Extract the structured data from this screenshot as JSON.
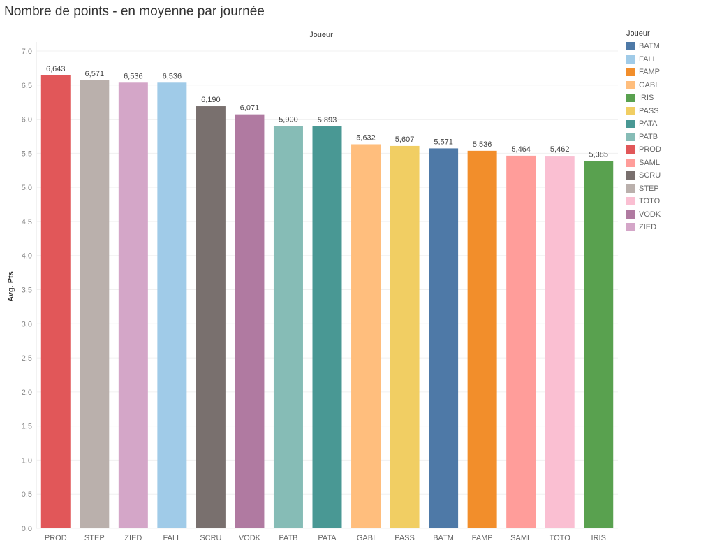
{
  "title": "Nombre de points - en moyenne par journée",
  "chart_data": {
    "type": "bar",
    "title": "Nombre de points - en moyenne par journée",
    "column_header": "Joueur",
    "xlabel": "",
    "ylabel": "Avg. Pts",
    "ylim": [
      0,
      7
    ],
    "yticks": [
      "0,0",
      "0,5",
      "1,0",
      "1,5",
      "2,0",
      "2,5",
      "3,0",
      "3,5",
      "4,0",
      "4,5",
      "5,0",
      "5,5",
      "6,0",
      "6,5",
      "7,0"
    ],
    "grid": true,
    "categories": [
      "PROD",
      "STEP",
      "ZIED",
      "FALL",
      "SCRU",
      "VODK",
      "PATB",
      "PATA",
      "GABI",
      "PASS",
      "BATM",
      "FAMP",
      "SAML",
      "TOTO",
      "IRIS"
    ],
    "values": [
      6.643,
      6.571,
      6.536,
      6.536,
      6.19,
      6.071,
      5.9,
      5.893,
      5.632,
      5.607,
      5.571,
      5.536,
      5.464,
      5.462,
      5.385
    ],
    "labels": [
      "6,643",
      "6,571",
      "6,536",
      "6,536",
      "6,190",
      "6,071",
      "5,900",
      "5,893",
      "5,632",
      "5,607",
      "5,571",
      "5,536",
      "5,464",
      "5,462",
      "5,385"
    ],
    "legend": {
      "title": "Joueur",
      "placement": "right",
      "items": [
        {
          "name": "BATM",
          "color": "#4e79a7"
        },
        {
          "name": "FALL",
          "color": "#a0cbe8"
        },
        {
          "name": "FAMP",
          "color": "#f28e2b"
        },
        {
          "name": "GABI",
          "color": "#ffbe7d"
        },
        {
          "name": "IRIS",
          "color": "#59a14f"
        },
        {
          "name": "PASS",
          "color": "#f1ce63"
        },
        {
          "name": "PATA",
          "color": "#499894"
        },
        {
          "name": "PATB",
          "color": "#86bcb6"
        },
        {
          "name": "PROD",
          "color": "#e15759"
        },
        {
          "name": "SAML",
          "color": "#ff9d9a"
        },
        {
          "name": "SCRU",
          "color": "#79706e"
        },
        {
          "name": "STEP",
          "color": "#bab0ac"
        },
        {
          "name": "TOTO",
          "color": "#fabfd2"
        },
        {
          "name": "VODK",
          "color": "#b07aa1"
        },
        {
          "name": "ZIED",
          "color": "#d4a6c8"
        }
      ]
    }
  }
}
